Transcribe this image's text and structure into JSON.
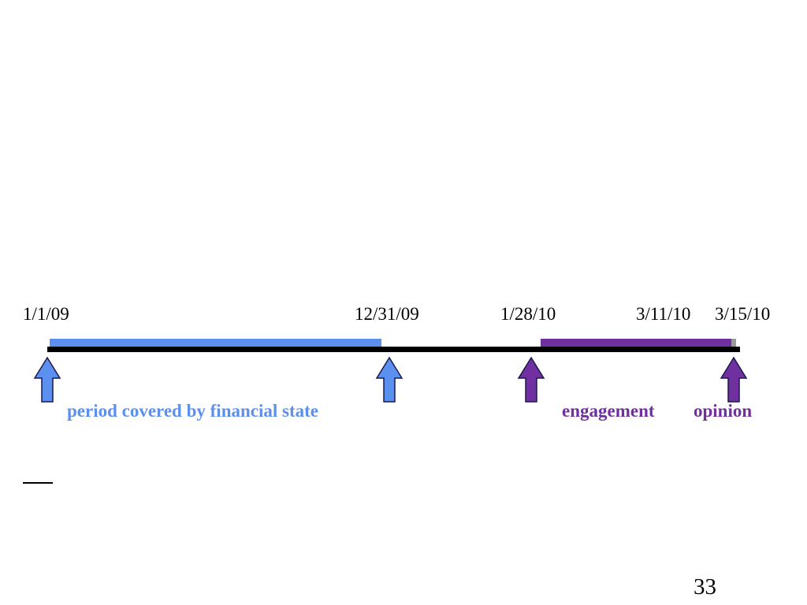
{
  "timeline": {
    "dates": [
      "1/1/09",
      "12/31/09",
      "1/28/10",
      "3/11/10",
      "3/15/10"
    ],
    "captions": {
      "period": "period covered by financial state",
      "engagement": "engagement",
      "opinion": "opinion"
    },
    "colors": {
      "axis": "#000000",
      "period_bar": "#5b8ff0",
      "engagement_bar": "#7030a0",
      "blue_arrow": "#5b8ff0",
      "purple_arrow": "#7030a0",
      "arrow_outline": "#1a1a4a"
    },
    "markers": [
      {
        "date": "1/1/09",
        "icon": "up-arrow-icon",
        "color": "blue"
      },
      {
        "date": "12/31/09",
        "icon": "up-arrow-icon",
        "color": "blue"
      },
      {
        "date": "1/28/10",
        "icon": "up-arrow-icon",
        "color": "purple"
      },
      {
        "date": "3/15/10",
        "icon": "up-arrow-icon",
        "color": "purple"
      }
    ]
  },
  "footer": {
    "page_number": "33"
  }
}
